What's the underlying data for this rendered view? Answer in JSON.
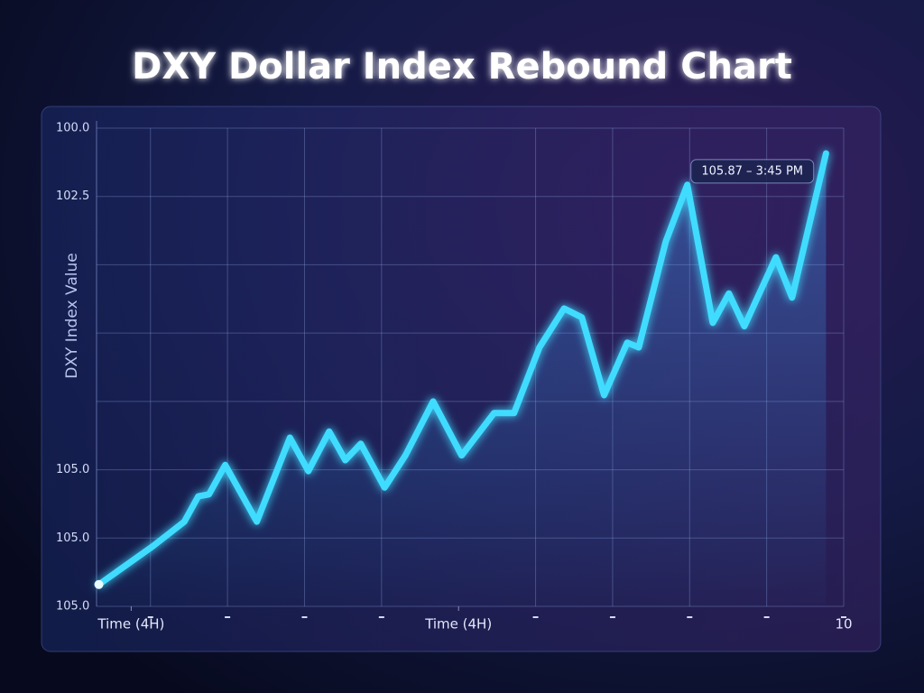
{
  "chart_data": {
    "type": "line",
    "title": "DXY Dollar Index Rebound Chart",
    "y_label": "DXY Index Value",
    "annotation": "105.87 – 3:45 PM",
    "x": [
      0.33,
      1.03,
      1.44,
      1.62,
      1.76,
      1.97,
      2.38,
      2.81,
      3.05,
      3.32,
      3.53,
      3.73,
      4.04,
      4.31,
      4.67,
      5.04,
      5.46,
      5.72,
      6.05,
      6.37,
      6.6,
      6.89,
      7.19,
      7.34,
      7.69,
      7.97,
      8.3,
      8.51,
      8.71,
      9.12,
      9.33,
      9.77
    ],
    "series": [
      {
        "color": "#3fdcff",
        "values": [
          0.32,
          0.88,
          1.24,
          1.61,
          1.64,
          2.07,
          1.24,
          2.47,
          1.98,
          2.56,
          2.14,
          2.38,
          1.74,
          2.21,
          3.0,
          2.21,
          2.83,
          2.83,
          3.79,
          4.36,
          4.23,
          3.09,
          3.86,
          3.79,
          5.34,
          6.17,
          4.15,
          4.58,
          4.1,
          5.11,
          4.52,
          6.63
        ]
      }
    ],
    "xlim": [
      0.3,
      10
    ],
    "xticks": [
      {
        "value": 0.75,
        "label": "Time (4H)"
      },
      1,
      2,
      3,
      4,
      {
        "value": 5,
        "label": "Time (4H)"
      },
      6,
      7,
      8,
      9,
      10
    ],
    "ylim": [
      0,
      7
    ],
    "yticks": [
      {
        "value": 7,
        "label": "100.0"
      },
      {
        "value": 6,
        "label": "102.5"
      },
      5,
      4,
      3,
      {
        "value": 2,
        "label": "105.0"
      },
      {
        "value": 1,
        "label": "105.0"
      },
      {
        "value": 0,
        "label": "105.0"
      }
    ],
    "grid": true
  }
}
